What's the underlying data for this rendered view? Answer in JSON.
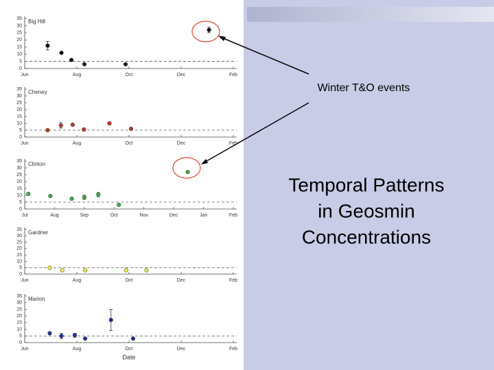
{
  "slide_title": [
    "Temporal Patterns",
    "in Geosmin",
    "Concentrations"
  ],
  "annotation": "Winter T&O events",
  "chart_data": [
    {
      "type": "scatter",
      "title": "Big Hill",
      "color": "#111111",
      "x": [
        0.88,
        1.41,
        1.79,
        2.29,
        3.87,
        7.07
      ],
      "values": [
        16,
        11,
        6,
        3,
        3,
        27
      ],
      "errors": [
        3,
        null,
        null,
        null,
        null,
        2
      ],
      "xlim": [
        0,
        8
      ],
      "xticks": [
        {
          "value": 0,
          "label": "Jun"
        },
        {
          "value": 2,
          "label": "Aug"
        },
        {
          "value": 4,
          "label": "Oct"
        },
        {
          "value": 6,
          "label": "Dec"
        },
        {
          "value": 8,
          "label": "Feb"
        }
      ],
      "ylim": [
        0,
        35
      ],
      "yticks": [
        0,
        5,
        10,
        15,
        20,
        25,
        30,
        35
      ],
      "reference_line": 5
    },
    {
      "type": "scatter",
      "title": "Cheney",
      "color": "#c0392b",
      "x": [
        0.88,
        1.39,
        1.84,
        2.27,
        3.25,
        4.08
      ],
      "values": [
        5,
        8.5,
        9,
        5.5,
        10,
        6
      ],
      "errors": [
        null,
        2,
        null,
        1,
        null,
        null
      ],
      "xlim": [
        0,
        8
      ],
      "xticks": [
        {
          "value": 0,
          "label": "Jun"
        },
        {
          "value": 2,
          "label": "Aug"
        },
        {
          "value": 4,
          "label": "Oct"
        },
        {
          "value": 6,
          "label": "Dec"
        },
        {
          "value": 8,
          "label": "Feb"
        }
      ],
      "ylim": [
        0,
        35
      ],
      "yticks": [
        0,
        5,
        10,
        15,
        20,
        25,
        30,
        35
      ],
      "reference_line": 5
    },
    {
      "type": "scatter",
      "title": "Clinton",
      "color": "#3cb043",
      "x": [
        0.12,
        0.86,
        1.58,
        2.0,
        2.47,
        3.16,
        5.47
      ],
      "values": [
        11,
        9.5,
        7.5,
        8.5,
        10.5,
        3,
        27
      ],
      "errors": [
        null,
        null,
        null,
        1.5,
        1.5,
        null,
        null
      ],
      "xlim": [
        0,
        7
      ],
      "xticks": [
        {
          "value": 0,
          "label": "Jul"
        },
        {
          "value": 1,
          "label": "Aug"
        },
        {
          "value": 2,
          "label": "Sep"
        },
        {
          "value": 3,
          "label": "Oct"
        },
        {
          "value": 4,
          "label": "Nov"
        },
        {
          "value": 5,
          "label": "Dec"
        },
        {
          "value": 6,
          "label": "Jan"
        },
        {
          "value": 7,
          "label": "Feb"
        }
      ],
      "ylim": [
        0,
        35
      ],
      "yticks": [
        0,
        5,
        10,
        15,
        20,
        25,
        30,
        35
      ],
      "reference_line": 5
    },
    {
      "type": "scatter",
      "title": "Gardner",
      "color": "#e8e84a",
      "x": [
        0.96,
        1.44,
        2.32,
        3.89,
        4.67
      ],
      "values": [
        5,
        3,
        3,
        3,
        3
      ],
      "errors": [
        null,
        null,
        null,
        null,
        null
      ],
      "xlim": [
        0,
        8
      ],
      "xticks": [
        {
          "value": 0,
          "label": "Jun"
        },
        {
          "value": 2,
          "label": "Aug"
        },
        {
          "value": 4,
          "label": "Oct"
        },
        {
          "value": 6,
          "label": "Dec"
        },
        {
          "value": 8,
          "label": "Feb"
        }
      ],
      "ylim": [
        0,
        35
      ],
      "yticks": [
        0,
        5,
        10,
        15,
        20,
        25,
        30,
        35
      ],
      "reference_line": 5
    },
    {
      "type": "scatter",
      "title": "Marion",
      "color": "#1f2f9c",
      "x_label": "Date",
      "x": [
        0.96,
        1.41,
        1.92,
        2.32,
        3.31,
        4.16
      ],
      "values": [
        7,
        5,
        5.5,
        3,
        17,
        3
      ],
      "errors": [
        null,
        2,
        1.5,
        null,
        8,
        null
      ],
      "xlim": [
        0,
        8
      ],
      "xticks": [
        {
          "value": 0,
          "label": "Jun"
        },
        {
          "value": 2,
          "label": "Aug"
        },
        {
          "value": 4,
          "label": "Oct"
        },
        {
          "value": 6,
          "label": "Dec"
        },
        {
          "value": 8,
          "label": "Feb"
        }
      ],
      "ylim": [
        0,
        35
      ],
      "yticks": [
        0,
        5,
        10,
        15,
        20,
        25,
        30,
        35
      ],
      "reference_line": 5
    }
  ]
}
